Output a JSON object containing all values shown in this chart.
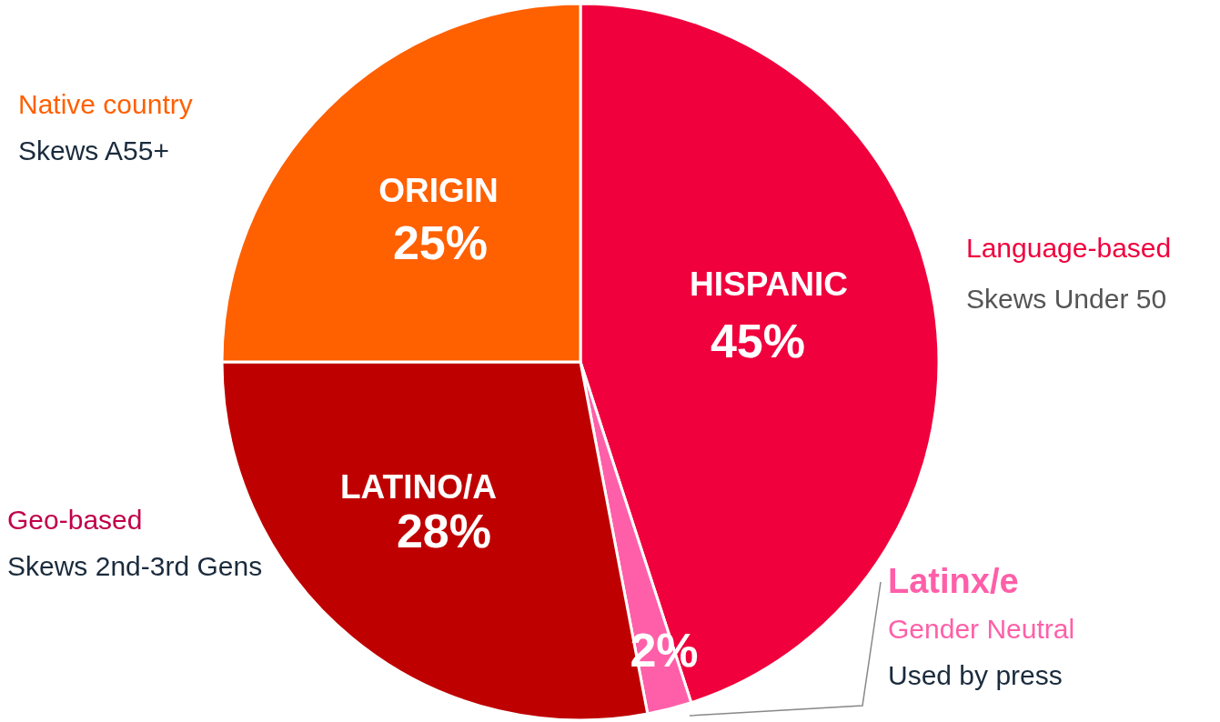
{
  "chart_data": {
    "type": "pie",
    "categories": [
      "HISPANIC",
      "Latinx/e",
      "LATINO/A",
      "ORIGIN"
    ],
    "values": [
      45,
      2,
      28,
      25
    ],
    "colors": [
      "#f0003c",
      "#ff5fa8",
      "#bf0000",
      "#ff6000"
    ],
    "value_labels": [
      "45%",
      "2%",
      "28%",
      "25%"
    ],
    "annotations": [
      "Language-based",
      "Skews Under 50",
      "Gender Neutral",
      "Used by press",
      "Geo-based",
      "Skews 2nd-3rd Gens",
      "Native country",
      "Skews A55+"
    ]
  }
}
